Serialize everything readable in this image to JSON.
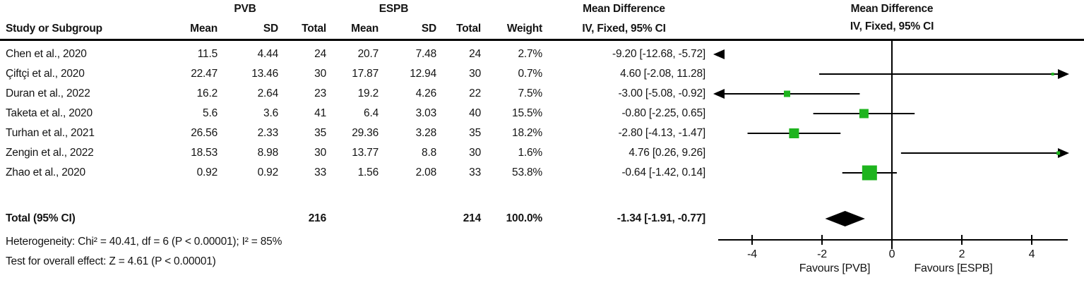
{
  "table": {
    "group_headers": {
      "pvb": "PVB",
      "espb": "ESPB",
      "md_text_col": "Mean Difference",
      "md_plot_col": "Mean Difference"
    },
    "columns": {
      "study": "Study or Subgroup",
      "mean": "Mean",
      "sd": "SD",
      "total": "Total",
      "mean2": "Mean",
      "sd2": "SD",
      "total2": "Total",
      "weight": "Weight",
      "ci": "IV, Fixed, 95% CI",
      "ci_plot": "IV, Fixed, 95% CI"
    },
    "rows": [
      {
        "study": "Chen et al., 2020",
        "mean1": "11.5",
        "sd1": "4.44",
        "total1": "24",
        "mean2": "20.7",
        "sd2": "7.48",
        "total2": "24",
        "weight": "2.7%",
        "ci": "-9.20 [-12.68, -5.72]"
      },
      {
        "study": "Çiftçi et al., 2020",
        "mean1": "22.47",
        "sd1": "13.46",
        "total1": "30",
        "mean2": "17.87",
        "sd2": "12.94",
        "total2": "30",
        "weight": "0.7%",
        "ci": "4.60 [-2.08, 11.28]"
      },
      {
        "study": "Duran et al., 2022",
        "mean1": "16.2",
        "sd1": "2.64",
        "total1": "23",
        "mean2": "19.2",
        "sd2": "4.26",
        "total2": "22",
        "weight": "7.5%",
        "ci": "-3.00 [-5.08, -0.92]"
      },
      {
        "study": "Taketa et al., 2020",
        "mean1": "5.6",
        "sd1": "3.6",
        "total1": "41",
        "mean2": "6.4",
        "sd2": "3.03",
        "total2": "40",
        "weight": "15.5%",
        "ci": "-0.80 [-2.25, 0.65]"
      },
      {
        "study": "Turhan et al., 2021",
        "mean1": "26.56",
        "sd1": "2.33",
        "total1": "35",
        "mean2": "29.36",
        "sd2": "3.28",
        "total2": "35",
        "weight": "18.2%",
        "ci": "-2.80 [-4.13, -1.47]"
      },
      {
        "study": "Zengin et al., 2022",
        "mean1": "18.53",
        "sd1": "8.98",
        "total1": "30",
        "mean2": "13.77",
        "sd2": "8.8",
        "total2": "30",
        "weight": "1.6%",
        "ci": "4.76 [0.26, 9.26]"
      },
      {
        "study": "Zhao et al., 2020",
        "mean1": "0.92",
        "sd1": "0.92",
        "total1": "33",
        "mean2": "1.56",
        "sd2": "2.08",
        "total2": "33",
        "weight": "53.8%",
        "ci": "-0.64 [-1.42, 0.14]"
      }
    ],
    "total_row": {
      "label": "Total (95% CI)",
      "total1": "216",
      "total2": "214",
      "weight": "100.0%",
      "ci": "-1.34 [-1.91, -0.77]"
    },
    "footnotes": {
      "heterogeneity": "Heterogeneity: Chi² = 40.41, df = 6 (P < 0.00001); I² = 85%",
      "overall_effect": "Test for overall effect: Z = 4.61 (P < 0.00001)"
    }
  },
  "chart_data": {
    "type": "forest",
    "effect_measure": "Mean Difference, IV, Fixed, 95% CI",
    "x_axis": {
      "ticks": [
        -4,
        -2,
        0,
        2,
        4
      ],
      "visible_min": -4.97,
      "visible_max": 5.03,
      "zero_line": 0
    },
    "favours_left": "Favours [PVB]",
    "favours_right": "Favours [ESPB]",
    "marker_color": "#1eb41e",
    "line_color": "#000000",
    "studies": [
      {
        "name": "Chen et al., 2020",
        "est": -9.2,
        "lo": -12.68,
        "hi": -5.72,
        "weight": 2.7
      },
      {
        "name": "Çiftçi et al., 2020",
        "est": 4.6,
        "lo": -2.08,
        "hi": 11.28,
        "weight": 0.7
      },
      {
        "name": "Duran et al., 2022",
        "est": -3.0,
        "lo": -5.08,
        "hi": -0.92,
        "weight": 7.5
      },
      {
        "name": "Taketa et al., 2020",
        "est": -0.8,
        "lo": -2.25,
        "hi": 0.65,
        "weight": 15.5
      },
      {
        "name": "Turhan et al., 2021",
        "est": -2.8,
        "lo": -4.13,
        "hi": -1.47,
        "weight": 18.2
      },
      {
        "name": "Zengin et al., 2022",
        "est": 4.76,
        "lo": 0.26,
        "hi": 9.26,
        "weight": 1.6
      },
      {
        "name": "Zhao et al., 2020",
        "est": -0.64,
        "lo": -1.42,
        "hi": 0.14,
        "weight": 53.8
      }
    ],
    "total": {
      "est": -1.34,
      "lo": -1.91,
      "hi": -0.77
    }
  }
}
